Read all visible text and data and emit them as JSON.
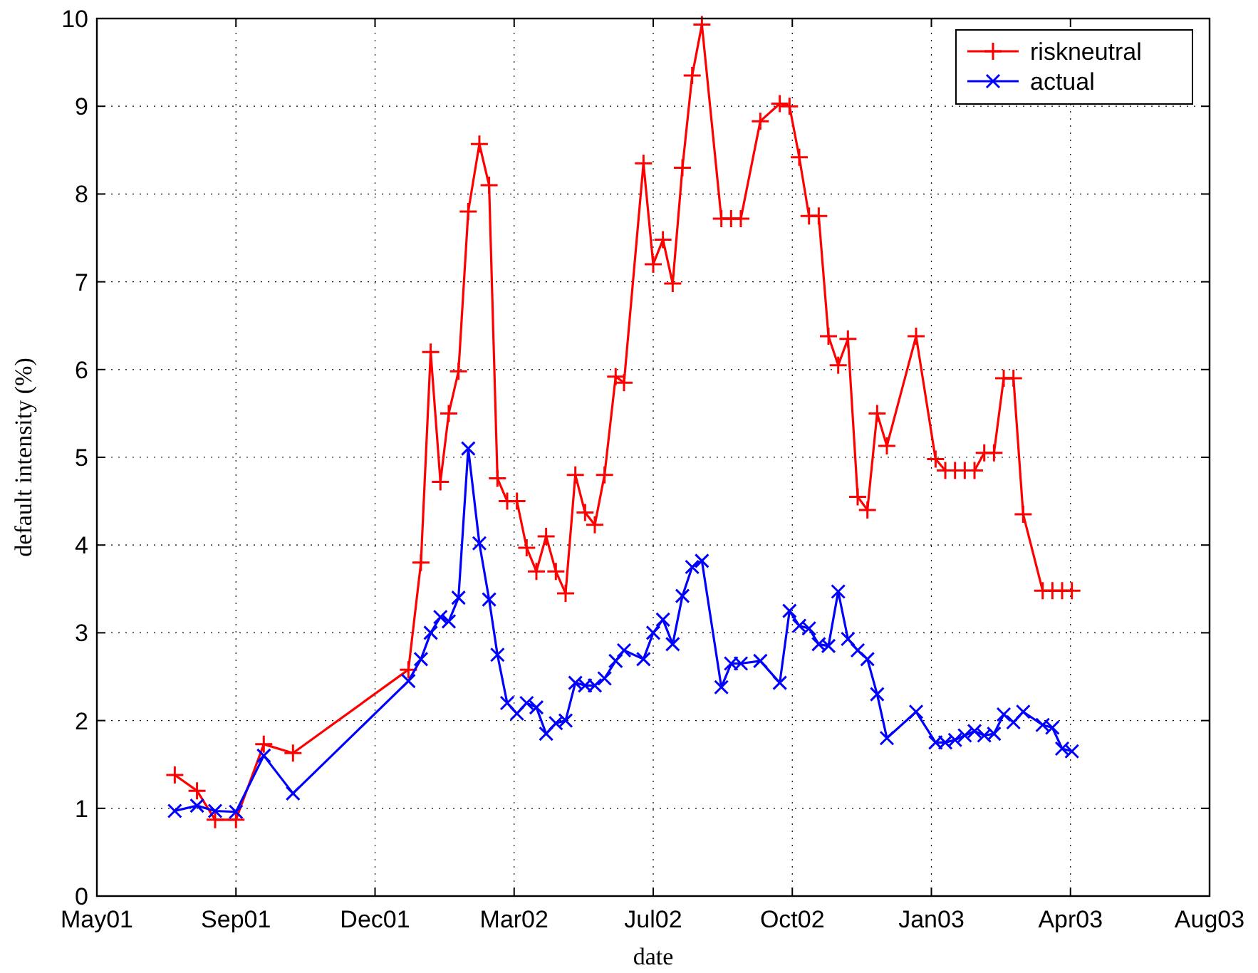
{
  "chart_data": {
    "type": "line",
    "xlabel": "date",
    "ylabel": "default intensity (%)",
    "x": [
      "2001-07-25",
      "2001-08-10",
      "2001-08-23",
      "2001-09-07",
      "2001-09-27",
      "2001-10-18",
      "2002-01-09",
      "2002-01-18",
      "2002-01-25",
      "2002-02-01",
      "2002-02-07",
      "2002-02-14",
      "2002-02-21",
      "2002-03-01",
      "2002-03-08",
      "2002-03-14",
      "2002-03-21",
      "2002-03-28",
      "2002-04-04",
      "2002-04-11",
      "2002-04-18",
      "2002-04-25",
      "2002-05-02",
      "2002-05-09",
      "2002-05-16",
      "2002-05-23",
      "2002-05-30",
      "2002-06-07",
      "2002-06-13",
      "2002-06-27",
      "2002-07-04",
      "2002-07-11",
      "2002-07-18",
      "2002-07-25",
      "2002-08-01",
      "2002-08-08",
      "2002-08-22",
      "2002-08-29",
      "2002-09-05",
      "2002-09-19",
      "2002-10-03",
      "2002-10-10",
      "2002-10-17",
      "2002-10-24",
      "2002-10-31",
      "2002-11-07",
      "2002-11-14",
      "2002-11-21",
      "2002-11-28",
      "2002-12-05",
      "2002-12-12",
      "2002-12-19",
      "2003-01-09",
      "2003-01-23",
      "2003-01-30",
      "2003-02-06",
      "2003-02-13",
      "2003-02-20",
      "2003-02-27",
      "2003-03-06",
      "2003-03-13",
      "2003-03-20",
      "2003-03-27",
      "2003-04-10",
      "2003-04-17",
      "2003-04-24",
      "2003-05-01"
    ],
    "series": [
      {
        "name": "riskneutral",
        "color": "#ff0000",
        "marker": "cross",
        "values": [
          1.38,
          1.2,
          0.87,
          0.87,
          1.73,
          1.63,
          2.58,
          3.8,
          6.2,
          4.72,
          5.5,
          5.98,
          7.8,
          8.57,
          8.1,
          4.76,
          4.5,
          4.5,
          3.97,
          3.7,
          4.1,
          3.7,
          3.45,
          4.8,
          4.37,
          4.23,
          4.8,
          5.92,
          5.85,
          8.35,
          7.2,
          7.48,
          6.98,
          8.3,
          9.35,
          9.93,
          7.72,
          7.72,
          7.72,
          8.83,
          9.03,
          9.0,
          8.42,
          7.75,
          7.75,
          6.38,
          6.05,
          6.35,
          4.55,
          4.4,
          5.5,
          5.13,
          6.38,
          4.98,
          4.85,
          4.85,
          4.85,
          4.85,
          5.05,
          5.05,
          5.9,
          5.9,
          4.35,
          3.48,
          3.48,
          3.48,
          3.48
        ]
      },
      {
        "name": "actual",
        "color": "#0000ff",
        "marker": "cross",
        "values": [
          0.97,
          1.03,
          0.97,
          0.96,
          1.6,
          1.17,
          2.45,
          2.7,
          3.0,
          3.18,
          3.13,
          3.4,
          5.1,
          4.02,
          3.38,
          2.75,
          2.2,
          2.08,
          2.2,
          2.15,
          1.85,
          1.97,
          2.0,
          2.43,
          2.4,
          2.4,
          2.48,
          2.68,
          2.8,
          2.7,
          3.0,
          3.15,
          2.87,
          3.42,
          3.75,
          3.82,
          2.38,
          2.65,
          2.65,
          2.68,
          2.43,
          3.25,
          3.08,
          3.05,
          2.87,
          2.85,
          3.47,
          2.93,
          2.8,
          2.7,
          2.3,
          1.8,
          2.1,
          1.75,
          1.75,
          1.78,
          1.83,
          1.88,
          1.83,
          1.85,
          2.07,
          1.98,
          2.1,
          1.95,
          1.92,
          1.68,
          1.65
        ]
      }
    ],
    "xlim": [
      "2001-05-30",
      "2003-08-08"
    ],
    "xticks": [
      {
        "value": "2001-05-30",
        "label": "May01"
      },
      {
        "value": "2001-09-07",
        "label": "Sep01"
      },
      {
        "value": "2001-12-16",
        "label": "Dec01"
      },
      {
        "value": "2002-03-26",
        "label": "Mar02"
      },
      {
        "value": "2002-07-04",
        "label": "Jul02"
      },
      {
        "value": "2002-10-12",
        "label": "Oct02"
      },
      {
        "value": "2003-01-20",
        "label": "Jan03"
      },
      {
        "value": "2003-04-30",
        "label": "Apr03"
      },
      {
        "value": "2003-08-08",
        "label": "Aug03"
      }
    ],
    "ylim": [
      0,
      10
    ],
    "yticks": [
      0,
      1,
      2,
      3,
      4,
      5,
      6,
      7,
      8,
      9,
      10
    ],
    "grid": true,
    "legend": "top right",
    "line_style": "solid"
  }
}
